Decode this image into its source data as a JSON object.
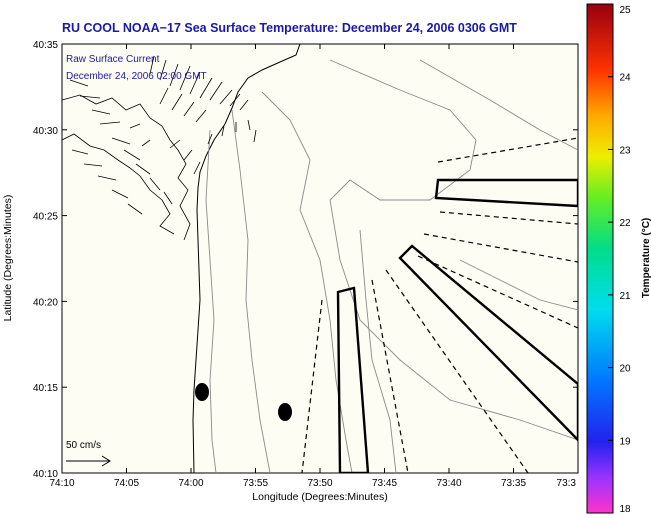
{
  "title": "RU COOL  NOAA−17  Sea Surface Temperature:  December 24, 2006 0306 GMT",
  "legend": {
    "line1": "Raw Surface Current",
    "line2": "December 24, 2006 02:00 GMT"
  },
  "scale_arrow_label": "50 cm/s",
  "xlabel": "Longitude (Degrees:Minutes)",
  "ylabel": "Latitude (Degrees:Minutes)",
  "x_ticks": [
    "74:10",
    "74:05",
    "74:00",
    "73:55",
    "73:50",
    "73:45",
    "73:40",
    "73:35",
    "73:3"
  ],
  "y_ticks": [
    "40:35",
    "40:30",
    "40:25",
    "40:20",
    "40:15",
    "40:10"
  ],
  "colorbar": {
    "label": "Temperature (°C)",
    "ticks": [
      "25",
      "24",
      "23",
      "22",
      "21",
      "20",
      "19",
      "18"
    ],
    "min": 18,
    "max": 25
  },
  "colors": {
    "background": "#fdfdf3",
    "title": "#1a1aa6",
    "contour": "#8a8a8a"
  }
}
